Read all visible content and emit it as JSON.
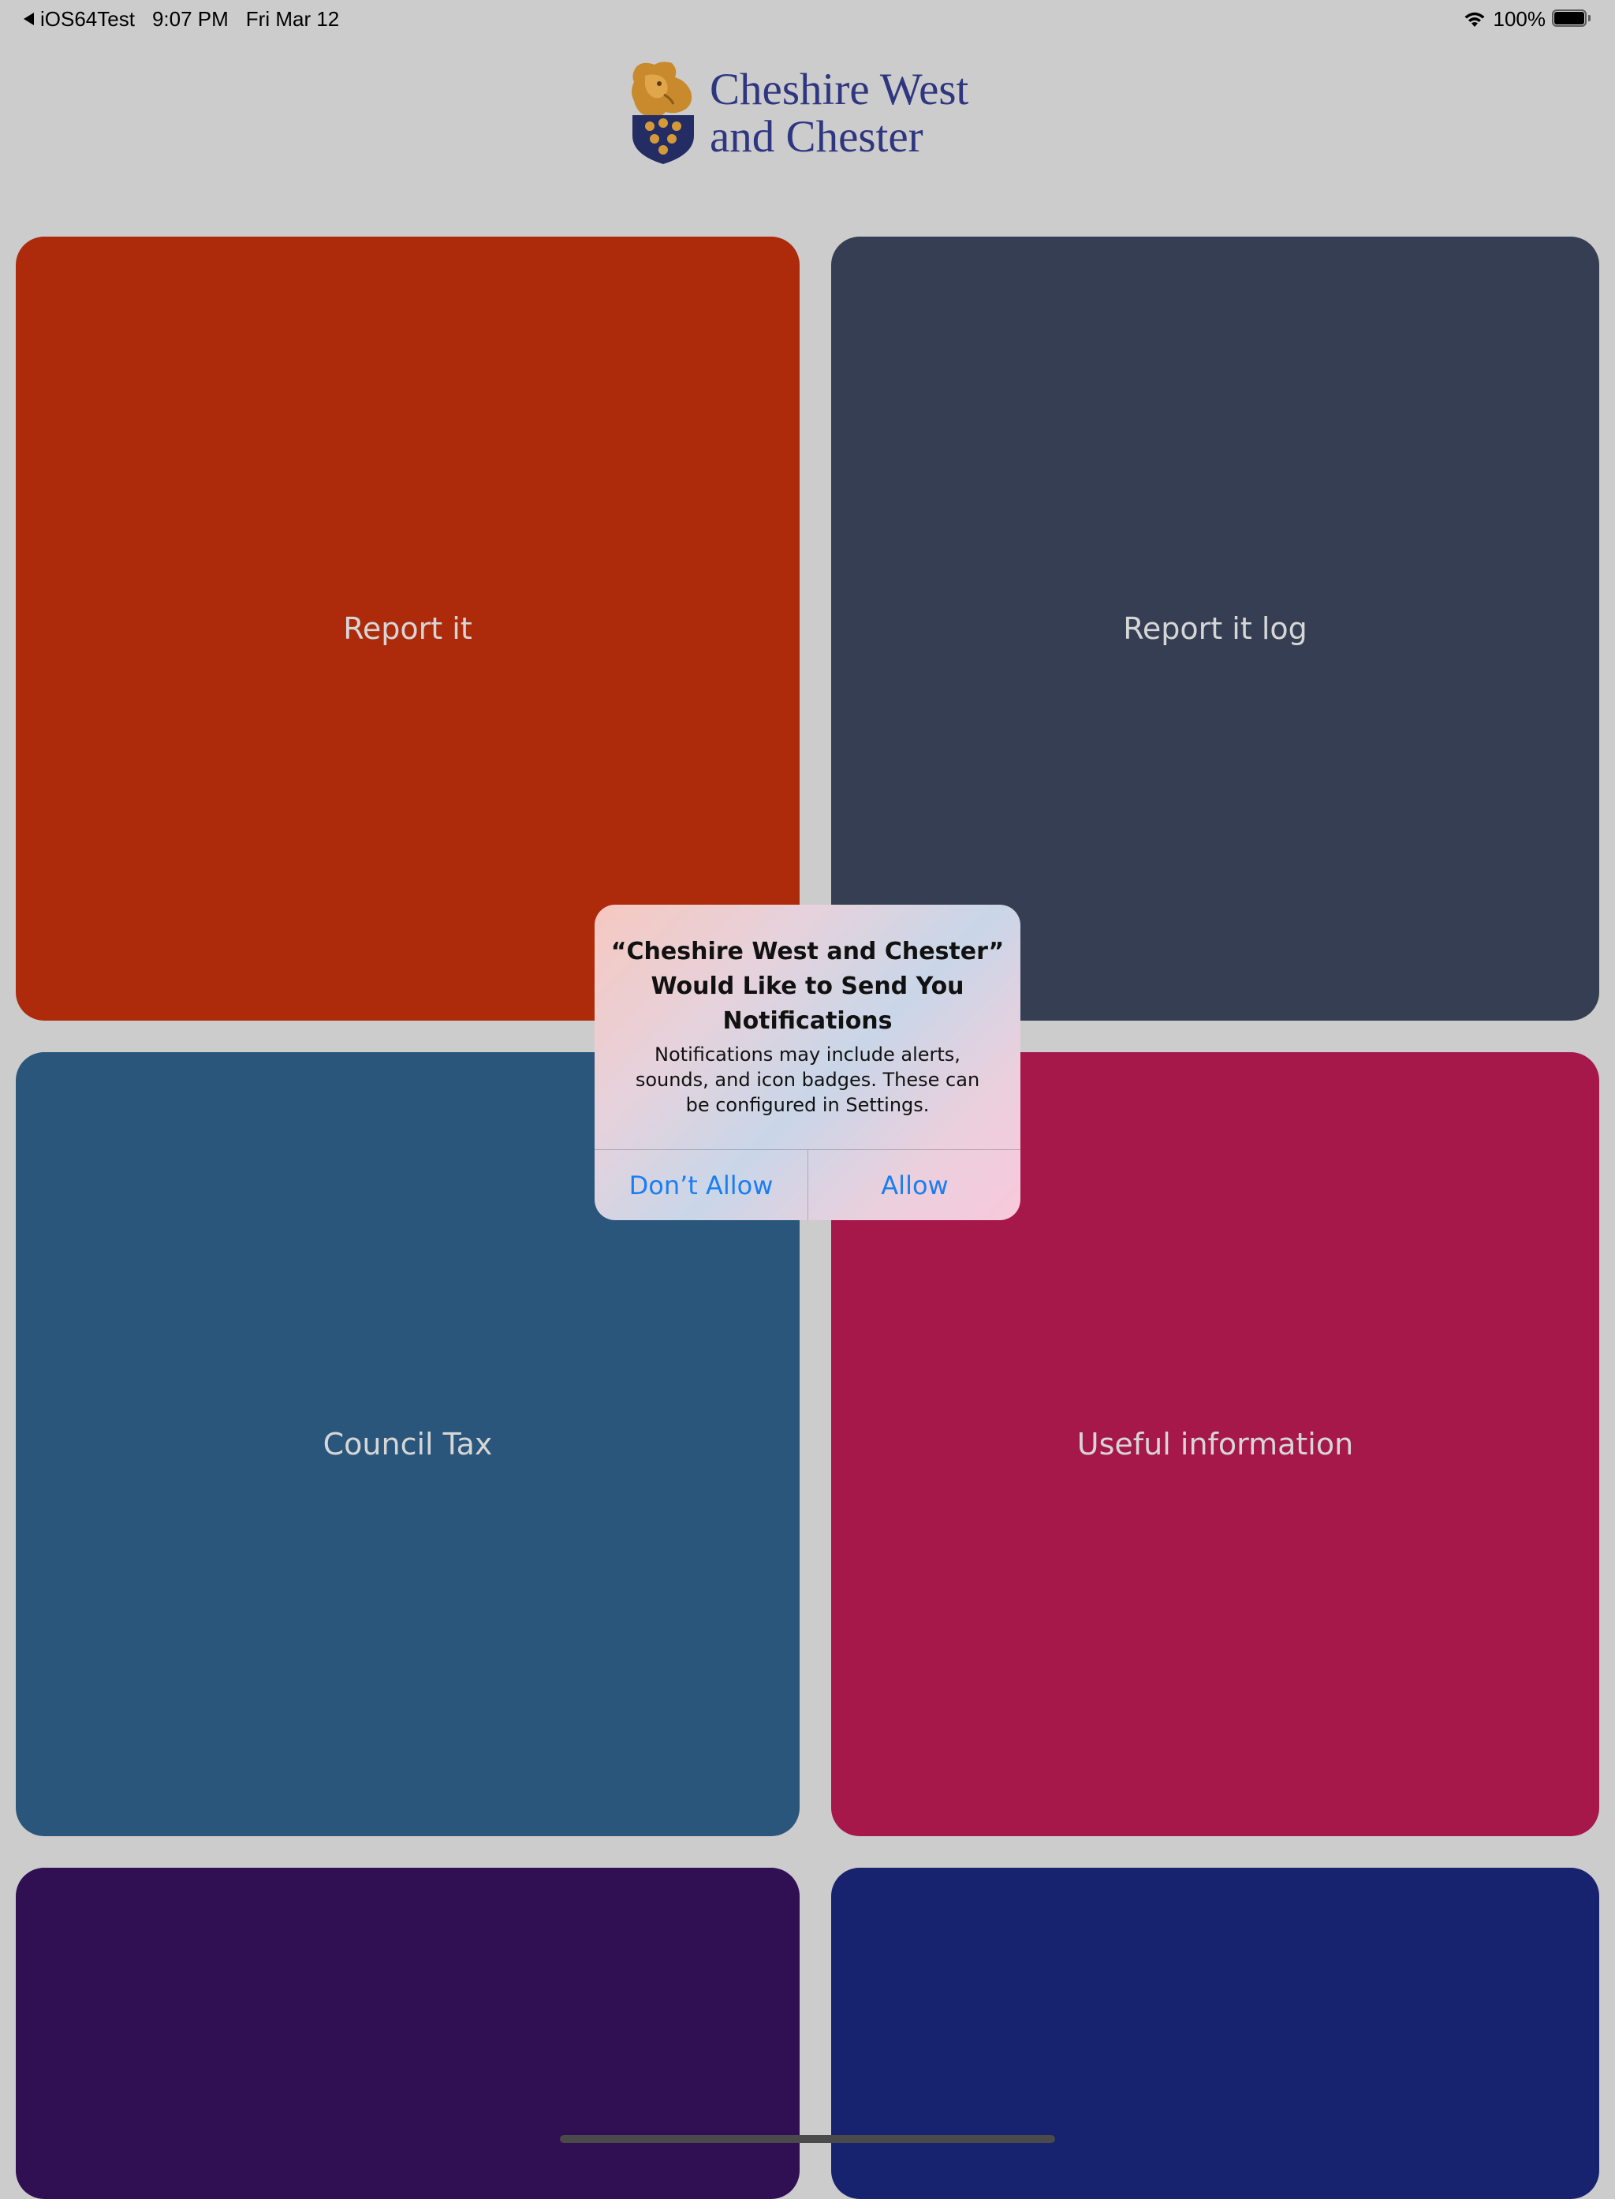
{
  "status_bar": {
    "back_app": "iOS64Test",
    "time": "9:07 PM",
    "date": "Fri Mar 12",
    "battery": "100%",
    "icons": [
      "back-arrow-icon",
      "wifi-icon",
      "battery-icon"
    ]
  },
  "logo": {
    "line1": "Cheshire West",
    "line2": "and Chester",
    "crest_icon": "lion-crest-icon"
  },
  "tiles": [
    {
      "label": "Report it",
      "color": "#ad2a0a"
    },
    {
      "label": "Report it log",
      "color": "#363e53"
    },
    {
      "label": "Council Tax",
      "color": "#2a567c"
    },
    {
      "label": "Useful information",
      "color": "#a6174a"
    },
    {
      "label": "",
      "color": "#300f53"
    },
    {
      "label": "",
      "color": "#18236f"
    }
  ],
  "alert": {
    "title": "“Cheshire West and Chester” Would Like to Send You Notifications",
    "message": "Notifications may include alerts, sounds, and icon badges. These can be configured in Settings.",
    "deny_label": "Don’t Allow",
    "allow_label": "Allow",
    "button_color": "#1b7ef0"
  },
  "colors": {
    "background": "#cccccc",
    "logo_text": "#2f3680",
    "crest_gold": "#c98a2e",
    "crest_navy": "#232c63"
  }
}
